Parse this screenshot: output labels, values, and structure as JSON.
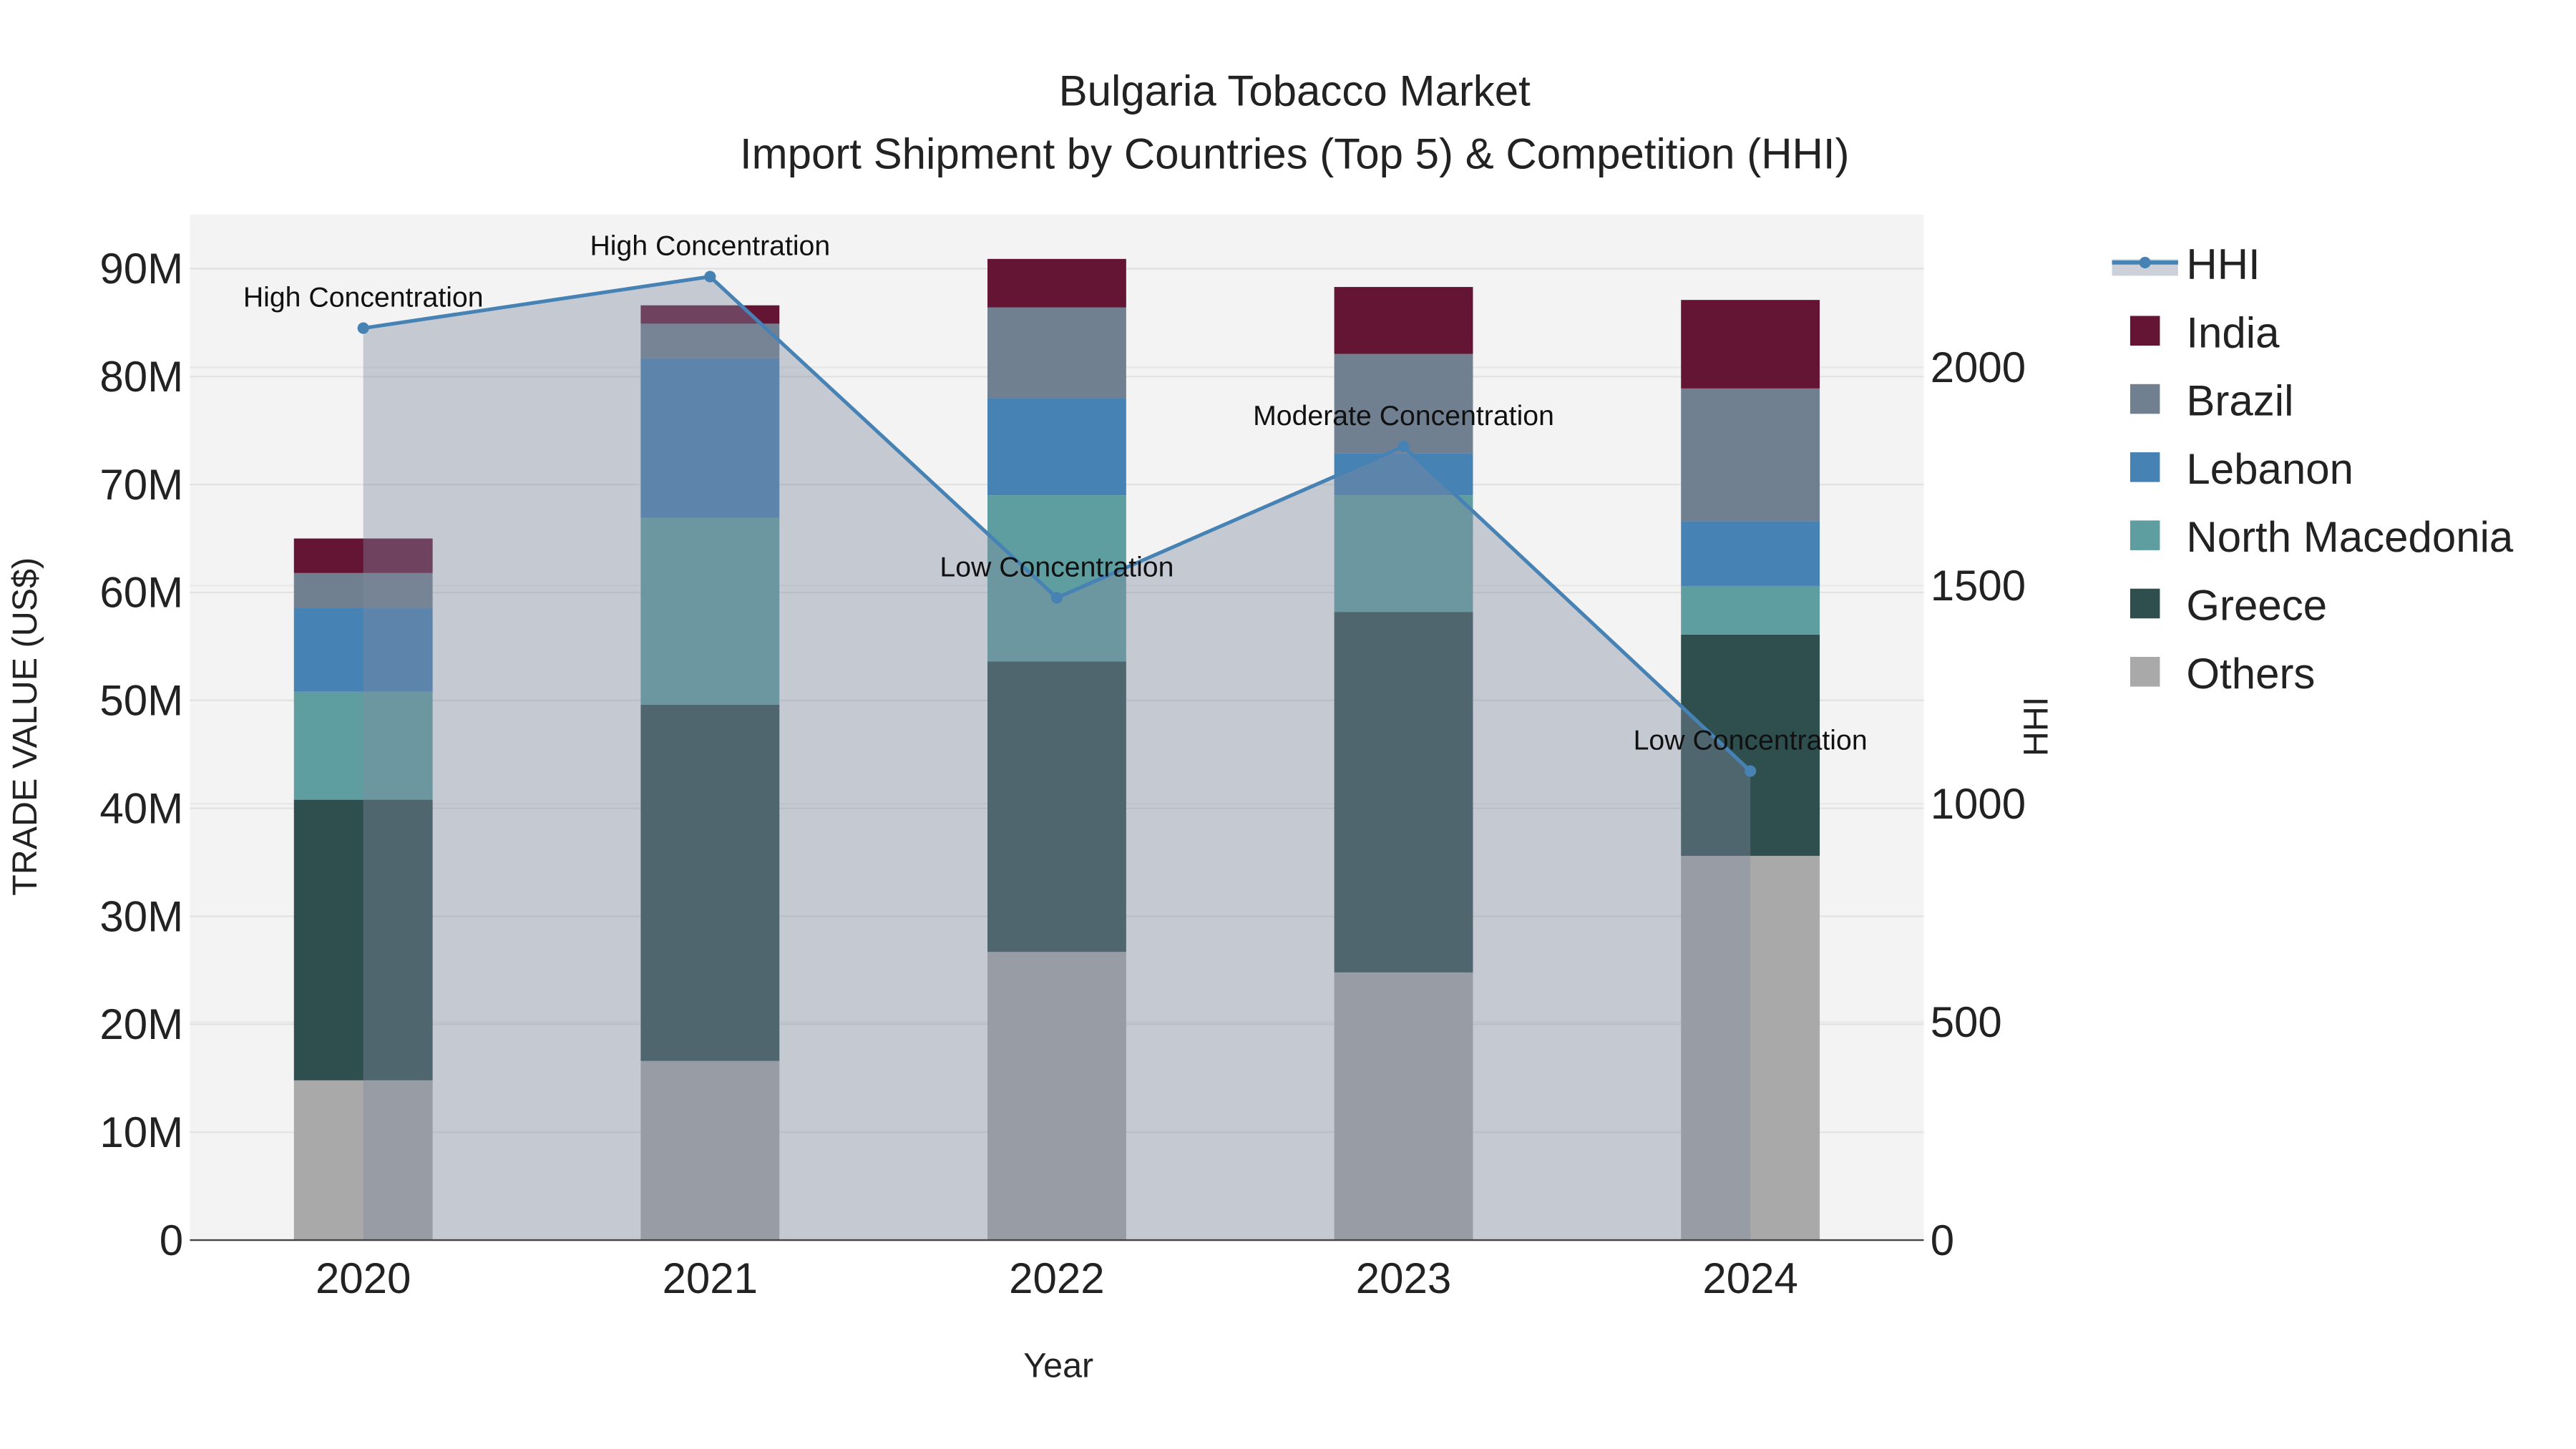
{
  "chart_data": {
    "type": "bar",
    "title": "Bulgaria Tobacco Market",
    "subtitle": "Import Shipment by Countries (Top 5) & Competition (HHI)",
    "xlabel": "Year",
    "ylabel": "TRADE VALUE (US$)",
    "y2label": "HHI",
    "categories": [
      "2020",
      "2021",
      "2022",
      "2023",
      "2024"
    ],
    "ylim": [
      0,
      95000000
    ],
    "y_ticks": [
      0,
      10000000,
      20000000,
      30000000,
      40000000,
      50000000,
      60000000,
      70000000,
      80000000,
      90000000
    ],
    "y_tick_labels": [
      "0",
      "10M",
      "20M",
      "30M",
      "40M",
      "50M",
      "60M",
      "70M",
      "80M",
      "90M"
    ],
    "y2lim": [
      0,
      2350
    ],
    "y2_ticks": [
      0,
      500,
      1000,
      1500,
      2000
    ],
    "y2_tick_labels": [
      "0",
      "500",
      "1000",
      "1500",
      "2000"
    ],
    "grid": true,
    "legend_position": "right",
    "series": [
      {
        "name": "Others",
        "color": "#a9a9a9",
        "values": [
          14800000,
          16600000,
          26700000,
          24800000,
          35600000
        ]
      },
      {
        "name": "Greece",
        "color": "#2f4f4f",
        "values": [
          26000000,
          33000000,
          26900000,
          33400000,
          20500000
        ]
      },
      {
        "name": "North Macedonia",
        "color": "#5f9ea0",
        "values": [
          10000000,
          17300000,
          15400000,
          10800000,
          4500000
        ]
      },
      {
        "name": "Lebanon",
        "color": "#4682b4",
        "values": [
          7800000,
          14800000,
          9000000,
          3900000,
          6000000
        ]
      },
      {
        "name": "Brazil",
        "color": "#708090",
        "values": [
          3200000,
          3200000,
          8400000,
          9200000,
          12300000
        ]
      },
      {
        "name": "India",
        "color": "#641534",
        "values": [
          3200000,
          1700000,
          4500000,
          6200000,
          8200000
        ]
      }
    ],
    "hhi": {
      "name": "HHI",
      "color": "#4682b4",
      "values": [
        2090,
        2208,
        1472,
        1819,
        1075
      ],
      "annotations": [
        "High Concentration",
        "High Concentration",
        "Low Concentration",
        "Moderate Concentration",
        "Low Concentration"
      ]
    },
    "legend_order": [
      "HHI",
      "India",
      "Brazil",
      "Lebanon",
      "North Macedonia",
      "Greece",
      "Others"
    ]
  }
}
